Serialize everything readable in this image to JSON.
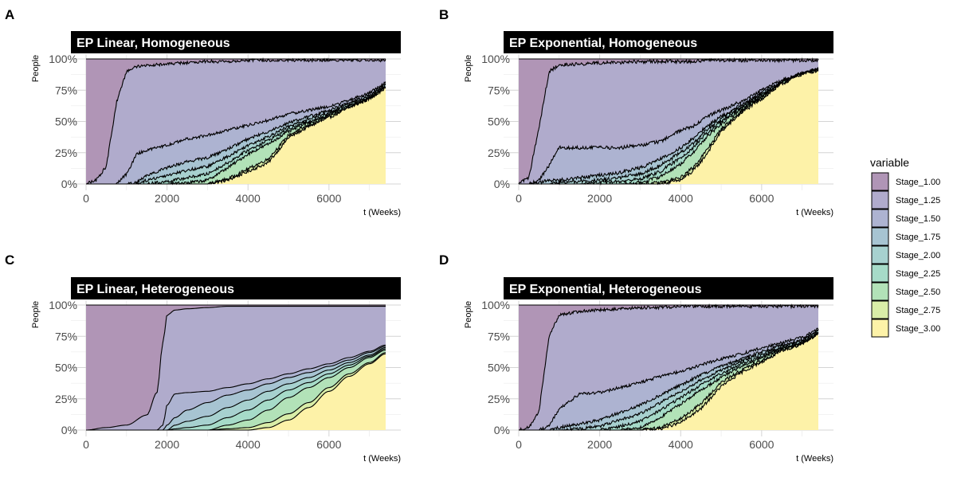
{
  "figure": {
    "legend": {
      "title": "variable",
      "position": "right",
      "entries": [
        {
          "name": "Stage_1.00",
          "color": "#B095B6"
        },
        {
          "name": "Stage_1.25",
          "color": "#B0ABCC"
        },
        {
          "name": "Stage_1.50",
          "color": "#ADB3D1"
        },
        {
          "name": "Stage_1.75",
          "color": "#A7C4D2"
        },
        {
          "name": "Stage_2.00",
          "color": "#A7D1CF"
        },
        {
          "name": "Stage_2.25",
          "color": "#A6DBC8"
        },
        {
          "name": "Stage_2.50",
          "color": "#B2E2B8"
        },
        {
          "name": "Stage_2.75",
          "color": "#D9EDA8"
        },
        {
          "name": "Stage_3.00",
          "color": "#FDF2A8"
        }
      ]
    }
  },
  "chart_data": [
    {
      "panel_letter": "A",
      "type": "area",
      "stacked": "fill",
      "title": "EP Linear, Homogeneous",
      "xlabel": "t (Weeks)",
      "ylabel": "People",
      "xlim": [
        0,
        7400
      ],
      "ylim": [
        0,
        1
      ],
      "x_ticks": [
        0,
        2000,
        4000,
        6000
      ],
      "y_ticks": [
        "0%",
        "25%",
        "50%",
        "75%",
        "100%"
      ],
      "grid": true,
      "noise": 0.012,
      "x": [
        0,
        250,
        500,
        750,
        1000,
        1250,
        1500,
        2000,
        2500,
        3000,
        3500,
        4000,
        4500,
        5000,
        5500,
        6000,
        6500,
        7000,
        7400
      ],
      "series": [
        {
          "name": "Stage_1.00",
          "values": [
            1.0,
            0.97,
            0.86,
            0.35,
            0.1,
            0.06,
            0.05,
            0.04,
            0.03,
            0.02,
            0.02,
            0.01,
            0.01,
            0.01,
            0.01,
            0.01,
            0.01,
            0.01,
            0.01
          ]
        },
        {
          "name": "Stage_1.25",
          "values": [
            0.0,
            0.03,
            0.14,
            0.65,
            0.82,
            0.7,
            0.68,
            0.65,
            0.61,
            0.59,
            0.55,
            0.52,
            0.48,
            0.43,
            0.4,
            0.37,
            0.32,
            0.26,
            0.18
          ]
        },
        {
          "name": "Stage_1.50",
          "values": [
            0.0,
            0.0,
            0.0,
            0.0,
            0.08,
            0.23,
            0.2,
            0.18,
            0.18,
            0.18,
            0.15,
            0.11,
            0.09,
            0.07,
            0.05,
            0.03,
            0.02,
            0.02,
            0.01
          ]
        },
        {
          "name": "Stage_1.75",
          "values": [
            0.0,
            0.0,
            0.0,
            0.0,
            0.0,
            0.01,
            0.04,
            0.06,
            0.07,
            0.07,
            0.06,
            0.05,
            0.04,
            0.03,
            0.02,
            0.02,
            0.01,
            0.01,
            0.01
          ]
        },
        {
          "name": "Stage_2.00",
          "values": [
            0.0,
            0.0,
            0.0,
            0.0,
            0.0,
            0.0,
            0.03,
            0.05,
            0.06,
            0.06,
            0.05,
            0.04,
            0.03,
            0.02,
            0.02,
            0.01,
            0.01,
            0.01,
            0.01
          ]
        },
        {
          "name": "Stage_2.25",
          "values": [
            0.0,
            0.0,
            0.0,
            0.0,
            0.0,
            0.0,
            0.0,
            0.02,
            0.04,
            0.05,
            0.04,
            0.03,
            0.03,
            0.02,
            0.01,
            0.01,
            0.01,
            0.01,
            0.01
          ]
        },
        {
          "name": "Stage_2.50",
          "values": [
            0.0,
            0.0,
            0.0,
            0.0,
            0.0,
            0.0,
            0.0,
            0.0,
            0.01,
            0.03,
            0.09,
            0.12,
            0.12,
            0.03,
            0.02,
            0.01,
            0.01,
            0.0,
            0.0
          ]
        },
        {
          "name": "Stage_2.75",
          "values": [
            0.0,
            0.0,
            0.0,
            0.0,
            0.0,
            0.0,
            0.0,
            0.0,
            0.0,
            0.0,
            0.01,
            0.02,
            0.03,
            0.02,
            0.01,
            0.01,
            0.0,
            0.0,
            0.0
          ]
        },
        {
          "name": "Stage_3.00",
          "values": [
            0.0,
            0.0,
            0.0,
            0.0,
            0.0,
            0.0,
            0.0,
            0.0,
            0.0,
            0.0,
            0.03,
            0.1,
            0.17,
            0.37,
            0.46,
            0.53,
            0.61,
            0.68,
            0.77
          ]
        }
      ]
    },
    {
      "panel_letter": "B",
      "type": "area",
      "stacked": "fill",
      "title": "EP Exponential, Homogeneous",
      "xlabel": "t (Weeks)",
      "ylabel": "People",
      "xlim": [
        0,
        7400
      ],
      "ylim": [
        0,
        1
      ],
      "x_ticks": [
        0,
        2000,
        4000,
        6000
      ],
      "y_ticks": [
        "0%",
        "25%",
        "50%",
        "75%",
        "100%"
      ],
      "grid": true,
      "noise": 0.014,
      "x": [
        0,
        250,
        500,
        750,
        1000,
        1500,
        2000,
        2500,
        3000,
        3500,
        4000,
        4300,
        4600,
        5000,
        5500,
        6000,
        6500,
        7000,
        7400
      ],
      "series": [
        {
          "name": "Stage_1.00",
          "values": [
            1.0,
            0.95,
            0.55,
            0.1,
            0.05,
            0.04,
            0.03,
            0.03,
            0.02,
            0.02,
            0.02,
            0.02,
            0.01,
            0.01,
            0.01,
            0.01,
            0.01,
            0.01,
            0.01
          ]
        },
        {
          "name": "Stage_1.25",
          "values": [
            0.0,
            0.05,
            0.42,
            0.75,
            0.66,
            0.67,
            0.68,
            0.68,
            0.67,
            0.64,
            0.55,
            0.52,
            0.46,
            0.4,
            0.33,
            0.24,
            0.16,
            0.1,
            0.07
          ]
        },
        {
          "name": "Stage_1.50",
          "values": [
            0.0,
            0.0,
            0.02,
            0.12,
            0.26,
            0.24,
            0.22,
            0.2,
            0.18,
            0.14,
            0.14,
            0.1,
            0.08,
            0.05,
            0.03,
            0.02,
            0.01,
            0.01,
            0.01
          ]
        },
        {
          "name": "Stage_1.75",
          "values": [
            0.0,
            0.0,
            0.01,
            0.03,
            0.02,
            0.03,
            0.04,
            0.04,
            0.05,
            0.05,
            0.04,
            0.04,
            0.03,
            0.02,
            0.01,
            0.01,
            0.01,
            0.0,
            0.0
          ]
        },
        {
          "name": "Stage_2.00",
          "values": [
            0.0,
            0.0,
            0.0,
            0.0,
            0.01,
            0.02,
            0.02,
            0.03,
            0.04,
            0.05,
            0.04,
            0.03,
            0.03,
            0.02,
            0.01,
            0.01,
            0.0,
            0.0,
            0.0
          ]
        },
        {
          "name": "Stage_2.25",
          "values": [
            0.0,
            0.0,
            0.0,
            0.0,
            0.0,
            0.0,
            0.01,
            0.02,
            0.03,
            0.04,
            0.05,
            0.04,
            0.03,
            0.02,
            0.01,
            0.01,
            0.0,
            0.0,
            0.0
          ]
        },
        {
          "name": "Stage_2.50",
          "values": [
            0.0,
            0.0,
            0.0,
            0.0,
            0.0,
            0.0,
            0.0,
            0.0,
            0.01,
            0.05,
            0.11,
            0.12,
            0.11,
            0.04,
            0.02,
            0.01,
            0.01,
            0.0,
            0.0
          ]
        },
        {
          "name": "Stage_2.75",
          "values": [
            0.0,
            0.0,
            0.0,
            0.0,
            0.0,
            0.0,
            0.0,
            0.0,
            0.0,
            0.01,
            0.02,
            0.03,
            0.03,
            0.02,
            0.01,
            0.01,
            0.0,
            0.0,
            0.0
          ]
        },
        {
          "name": "Stage_3.00",
          "values": [
            0.0,
            0.0,
            0.0,
            0.0,
            0.0,
            0.0,
            0.0,
            0.0,
            0.0,
            0.0,
            0.03,
            0.1,
            0.22,
            0.42,
            0.57,
            0.68,
            0.8,
            0.88,
            0.91
          ]
        }
      ]
    },
    {
      "panel_letter": "C",
      "type": "area",
      "stacked": "fill",
      "title": "EP Linear, Heterogeneous",
      "xlabel": "t (Weeks)",
      "ylabel": "People",
      "xlim": [
        0,
        7400
      ],
      "ylim": [
        0,
        1
      ],
      "x_ticks": [
        0,
        2000,
        4000,
        6000
      ],
      "y_ticks": [
        "0%",
        "25%",
        "50%",
        "75%",
        "100%"
      ],
      "grid": true,
      "noise": 0.0,
      "x": [
        0,
        500,
        1000,
        1500,
        1750,
        1900,
        2000,
        2200,
        2500,
        3000,
        3500,
        4000,
        4500,
        5000,
        5500,
        6000,
        6500,
        7000,
        7400
      ],
      "series": [
        {
          "name": "Stage_1.00",
          "values": [
            1.0,
            0.98,
            0.96,
            0.88,
            0.7,
            0.3,
            0.08,
            0.04,
            0.03,
            0.02,
            0.01,
            0.01,
            0.01,
            0.01,
            0.01,
            0.01,
            0.01,
            0.01,
            0.01
          ]
        },
        {
          "name": "Stage_1.25",
          "values": [
            0.0,
            0.02,
            0.04,
            0.12,
            0.3,
            0.66,
            0.72,
            0.67,
            0.67,
            0.67,
            0.65,
            0.62,
            0.58,
            0.54,
            0.5,
            0.46,
            0.41,
            0.36,
            0.31
          ]
        },
        {
          "name": "Stage_1.50",
          "values": [
            0.0,
            0.0,
            0.0,
            0.0,
            0.0,
            0.04,
            0.16,
            0.19,
            0.14,
            0.09,
            0.06,
            0.05,
            0.04,
            0.03,
            0.03,
            0.02,
            0.02,
            0.01,
            0.01
          ]
        },
        {
          "name": "Stage_1.75",
          "values": [
            0.0,
            0.0,
            0.0,
            0.0,
            0.0,
            0.0,
            0.04,
            0.06,
            0.09,
            0.11,
            0.1,
            0.08,
            0.06,
            0.05,
            0.04,
            0.03,
            0.02,
            0.02,
            0.01
          ]
        },
        {
          "name": "Stage_2.00",
          "values": [
            0.0,
            0.0,
            0.0,
            0.0,
            0.0,
            0.0,
            0.0,
            0.03,
            0.05,
            0.07,
            0.08,
            0.08,
            0.07,
            0.05,
            0.04,
            0.03,
            0.02,
            0.01,
            0.01
          ]
        },
        {
          "name": "Stage_2.25",
          "values": [
            0.0,
            0.0,
            0.0,
            0.0,
            0.0,
            0.0,
            0.0,
            0.01,
            0.02,
            0.04,
            0.06,
            0.08,
            0.08,
            0.06,
            0.04,
            0.03,
            0.02,
            0.01,
            0.01
          ]
        },
        {
          "name": "Stage_2.50",
          "values": [
            0.0,
            0.0,
            0.0,
            0.0,
            0.0,
            0.0,
            0.0,
            0.0,
            0.0,
            0.0,
            0.03,
            0.06,
            0.1,
            0.13,
            0.12,
            0.08,
            0.05,
            0.04,
            0.02
          ]
        },
        {
          "name": "Stage_2.75",
          "values": [
            0.0,
            0.0,
            0.0,
            0.0,
            0.0,
            0.0,
            0.0,
            0.0,
            0.0,
            0.0,
            0.01,
            0.02,
            0.04,
            0.05,
            0.04,
            0.03,
            0.02,
            0.01,
            0.01
          ]
        },
        {
          "name": "Stage_3.00",
          "values": [
            0.0,
            0.0,
            0.0,
            0.0,
            0.0,
            0.0,
            0.0,
            0.0,
            0.0,
            0.0,
            0.0,
            0.0,
            0.02,
            0.08,
            0.18,
            0.31,
            0.43,
            0.53,
            0.61
          ]
        }
      ]
    },
    {
      "panel_letter": "D",
      "type": "area",
      "stacked": "fill",
      "title": "EP Exponential, Heterogeneous",
      "xlabel": "t (Weeks)",
      "ylabel": "People",
      "xlim": [
        0,
        7400
      ],
      "ylim": [
        0,
        1
      ],
      "x_ticks": [
        0,
        2000,
        4000,
        6000
      ],
      "y_ticks": [
        "0%",
        "25%",
        "50%",
        "75%",
        "100%"
      ],
      "grid": true,
      "noise": 0.012,
      "x": [
        0,
        250,
        500,
        750,
        1000,
        1500,
        2000,
        2500,
        3000,
        3500,
        4000,
        4500,
        5000,
        5500,
        6000,
        6500,
        7000,
        7400
      ],
      "series": [
        {
          "name": "Stage_1.00",
          "values": [
            1.0,
            0.98,
            0.85,
            0.25,
            0.08,
            0.05,
            0.04,
            0.03,
            0.02,
            0.02,
            0.01,
            0.01,
            0.01,
            0.01,
            0.01,
            0.01,
            0.01,
            0.01
          ]
        },
        {
          "name": "Stage_1.25",
          "values": [
            0.0,
            0.02,
            0.15,
            0.72,
            0.75,
            0.66,
            0.66,
            0.63,
            0.6,
            0.55,
            0.52,
            0.47,
            0.42,
            0.38,
            0.33,
            0.29,
            0.25,
            0.18
          ]
        },
        {
          "name": "Stage_1.50",
          "values": [
            0.0,
            0.0,
            0.0,
            0.03,
            0.15,
            0.24,
            0.22,
            0.2,
            0.18,
            0.15,
            0.11,
            0.08,
            0.06,
            0.04,
            0.03,
            0.02,
            0.02,
            0.01
          ]
        },
        {
          "name": "Stage_1.75",
          "values": [
            0.0,
            0.0,
            0.0,
            0.0,
            0.02,
            0.04,
            0.05,
            0.06,
            0.07,
            0.06,
            0.05,
            0.04,
            0.03,
            0.02,
            0.02,
            0.01,
            0.01,
            0.01
          ]
        },
        {
          "name": "Stage_2.00",
          "values": [
            0.0,
            0.0,
            0.0,
            0.0,
            0.0,
            0.01,
            0.03,
            0.05,
            0.06,
            0.06,
            0.05,
            0.04,
            0.03,
            0.02,
            0.02,
            0.01,
            0.01,
            0.01
          ]
        },
        {
          "name": "Stage_2.25",
          "values": [
            0.0,
            0.0,
            0.0,
            0.0,
            0.0,
            0.0,
            0.0,
            0.03,
            0.05,
            0.06,
            0.05,
            0.04,
            0.03,
            0.02,
            0.01,
            0.01,
            0.01,
            0.01
          ]
        },
        {
          "name": "Stage_2.50",
          "values": [
            0.0,
            0.0,
            0.0,
            0.0,
            0.0,
            0.0,
            0.0,
            0.0,
            0.02,
            0.08,
            0.12,
            0.11,
            0.04,
            0.03,
            0.02,
            0.01,
            0.0,
            0.0
          ]
        },
        {
          "name": "Stage_2.75",
          "values": [
            0.0,
            0.0,
            0.0,
            0.0,
            0.0,
            0.0,
            0.0,
            0.0,
            0.0,
            0.01,
            0.03,
            0.04,
            0.03,
            0.02,
            0.01,
            0.01,
            0.0,
            0.0
          ]
        },
        {
          "name": "Stage_3.00",
          "values": [
            0.0,
            0.0,
            0.0,
            0.0,
            0.0,
            0.0,
            0.0,
            0.0,
            0.0,
            0.01,
            0.06,
            0.17,
            0.35,
            0.46,
            0.54,
            0.63,
            0.69,
            0.77
          ]
        }
      ]
    }
  ]
}
